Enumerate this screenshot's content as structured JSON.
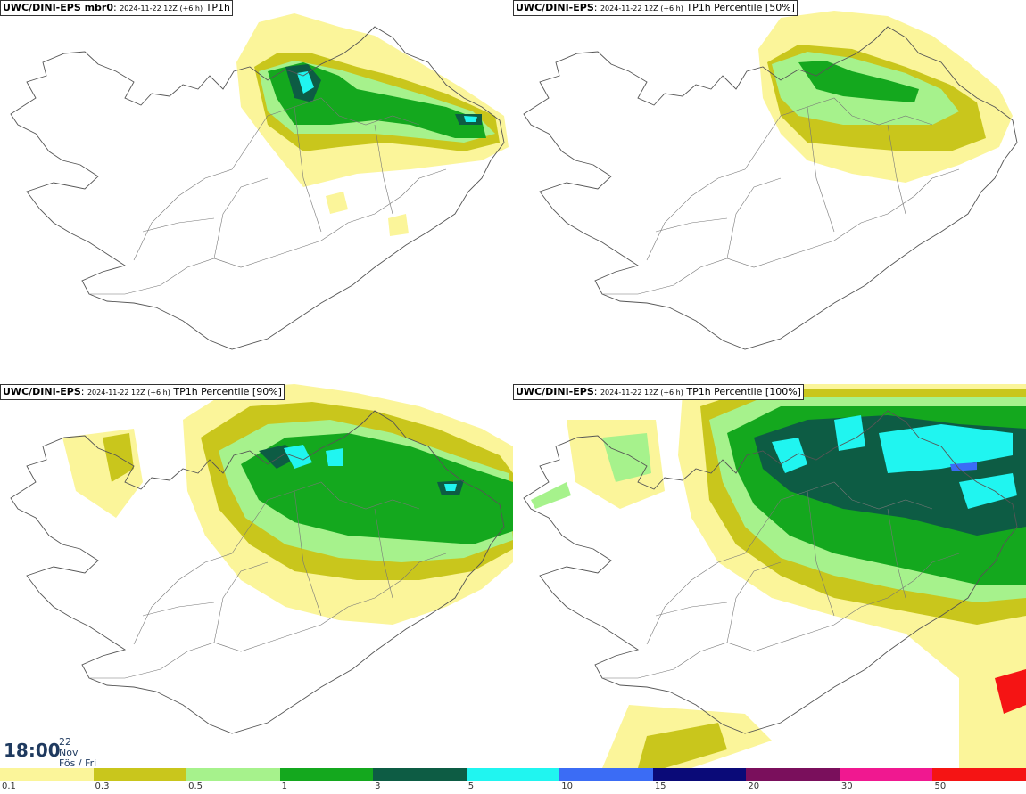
{
  "panels": [
    {
      "model": "UWC/DINI-EPS mbr0",
      "run": "2024-11-22 12Z (+6 h)",
      "field": "TP1h"
    },
    {
      "model": "UWC/DINI-EPS",
      "run": "2024-11-22 12Z (+6 h)",
      "field": "TP1h Percentile [50%]"
    },
    {
      "model": "UWC/DINI-EPS",
      "run": "2024-11-22 12Z (+6 h)",
      "field": "TP1h Percentile [90%]"
    },
    {
      "model": "UWC/DINI-EPS",
      "run": "2024-11-22 12Z (+6 h)",
      "field": "TP1h Percentile [100%]"
    }
  ],
  "valid_time": {
    "time": "18:00",
    "day": "22",
    "month": "Nov",
    "weekday": "Fös / Fri"
  },
  "legend": {
    "ticks": [
      "0.1",
      "0.3",
      "0.5",
      "1",
      "3",
      "5",
      "10",
      "15",
      "20",
      "30",
      "50"
    ],
    "colors": [
      "#fbf59a",
      "#c9c61c",
      "#a6f28c",
      "#14a81e",
      "#0d5c44",
      "#20f5f0",
      "#3b6cf5",
      "#0a0a78",
      "#7a0f5c",
      "#f01890",
      "#f51414"
    ]
  }
}
